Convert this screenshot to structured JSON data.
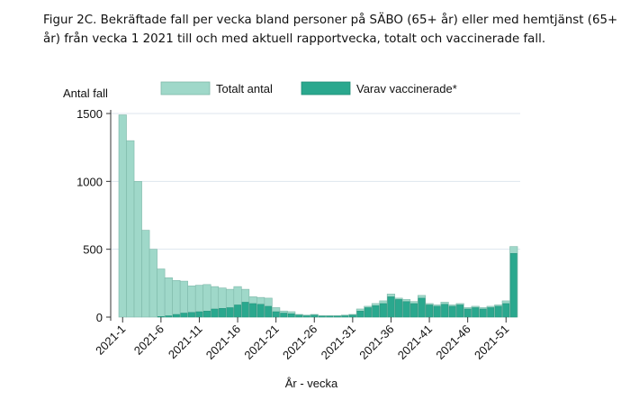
{
  "caption": "Figur 2C. Bekräftade fall per vecka bland personer på SÄBO (65+ år) eller med hemtjänst (65+ år) från vecka 1 2021 till och med aktuell rapportvecka, totalt och vaccinerade fall.",
  "chart_data": {
    "type": "bar",
    "ylabel": "Antal fall",
    "xlabel": "År - vecka",
    "ylim": [
      0,
      1500
    ],
    "yticks": [
      0,
      500,
      1000,
      1500
    ],
    "grid": true,
    "legend_position": "top",
    "xtick_labels": [
      "2021-1",
      "2021-6",
      "2021-11",
      "2021-16",
      "2021-21",
      "2021-26",
      "2021-31",
      "2021-36",
      "2021-41",
      "2021-46",
      "2021-51"
    ],
    "categories": [
      "2021-1",
      "2021-2",
      "2021-3",
      "2021-4",
      "2021-5",
      "2021-6",
      "2021-7",
      "2021-8",
      "2021-9",
      "2021-10",
      "2021-11",
      "2021-12",
      "2021-13",
      "2021-14",
      "2021-15",
      "2021-16",
      "2021-17",
      "2021-18",
      "2021-19",
      "2021-20",
      "2021-21",
      "2021-22",
      "2021-23",
      "2021-24",
      "2021-25",
      "2021-26",
      "2021-27",
      "2021-28",
      "2021-29",
      "2021-30",
      "2021-31",
      "2021-32",
      "2021-33",
      "2021-34",
      "2021-35",
      "2021-36",
      "2021-37",
      "2021-38",
      "2021-39",
      "2021-40",
      "2021-41",
      "2021-42",
      "2021-43",
      "2021-44",
      "2021-45",
      "2021-46",
      "2021-47",
      "2021-48",
      "2021-49",
      "2021-50",
      "2021-51",
      "2021-52"
    ],
    "series": [
      {
        "name": "Totalt antal",
        "color": "#9fd8c9",
        "values": [
          1490,
          1300,
          1000,
          640,
          500,
          355,
          290,
          270,
          265,
          230,
          235,
          240,
          225,
          215,
          205,
          225,
          205,
          150,
          145,
          140,
          70,
          45,
          40,
          20,
          15,
          20,
          10,
          10,
          10,
          15,
          20,
          60,
          80,
          100,
          120,
          170,
          140,
          130,
          115,
          160,
          100,
          90,
          110,
          90,
          100,
          70,
          80,
          70,
          80,
          90,
          120,
          520
        ]
      },
      {
        "name": "Varav vaccinerade*",
        "color": "#2aa88e",
        "values": [
          0,
          0,
          0,
          0,
          0,
          5,
          10,
          20,
          30,
          35,
          40,
          45,
          60,
          65,
          70,
          90,
          110,
          100,
          95,
          80,
          40,
          30,
          25,
          15,
          10,
          15,
          8,
          8,
          8,
          10,
          15,
          45,
          70,
          85,
          100,
          150,
          130,
          115,
          100,
          140,
          90,
          80,
          95,
          80,
          90,
          60,
          70,
          60,
          70,
          80,
          100,
          470
        ]
      }
    ]
  }
}
